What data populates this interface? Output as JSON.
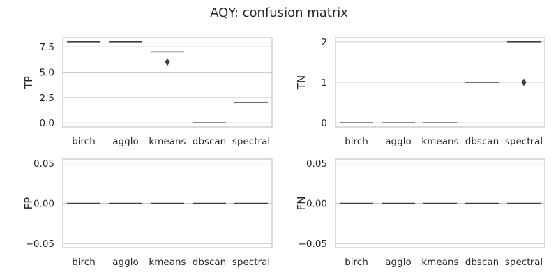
{
  "title": "AQY: confusion matrix",
  "chart_data": [
    {
      "type": "box",
      "ylabel": "TP",
      "categories": [
        "birch",
        "agglo",
        "kmeans",
        "dbscan",
        "spectral"
      ],
      "values": [
        8,
        8,
        7,
        0,
        2
      ],
      "outliers": [
        [],
        [],
        [
          6
        ],
        [],
        []
      ],
      "ylim": [
        -0.4,
        8.4
      ],
      "yticks": [
        0.0,
        2.5,
        5.0,
        7.5
      ],
      "ytick_labels": [
        "0.0",
        "2.5",
        "5.0",
        "7.5"
      ],
      "grid": true
    },
    {
      "type": "box",
      "ylabel": "TN",
      "categories": [
        "birch",
        "agglo",
        "kmeans",
        "dbscan",
        "spectral"
      ],
      "values": [
        0,
        0,
        0,
        1,
        2
      ],
      "outliers": [
        [],
        [],
        [],
        [],
        [
          1
        ]
      ],
      "ylim": [
        -0.1,
        2.1
      ],
      "yticks": [
        0,
        1,
        2
      ],
      "ytick_labels": [
        "0",
        "1",
        "2"
      ],
      "grid": true
    },
    {
      "type": "box",
      "ylabel": "FP",
      "categories": [
        "birch",
        "agglo",
        "kmeans",
        "dbscan",
        "spectral"
      ],
      "values": [
        0,
        0,
        0,
        0,
        0
      ],
      "outliers": [
        [],
        [],
        [],
        [],
        []
      ],
      "ylim": [
        -0.055,
        0.055
      ],
      "yticks": [
        -0.05,
        0.0,
        0.05
      ],
      "ytick_labels": [
        "−0.05",
        "0.00",
        "0.05"
      ],
      "grid": true
    },
    {
      "type": "box",
      "ylabel": "FN",
      "categories": [
        "birch",
        "agglo",
        "kmeans",
        "dbscan",
        "spectral"
      ],
      "values": [
        0,
        0,
        0,
        0,
        0
      ],
      "outliers": [
        [],
        [],
        [],
        [],
        []
      ],
      "ylim": [
        -0.055,
        0.055
      ],
      "yticks": [
        -0.05,
        0.0,
        0.05
      ],
      "ytick_labels": [
        "−0.05",
        "0.00",
        "0.05"
      ],
      "grid": true
    }
  ]
}
